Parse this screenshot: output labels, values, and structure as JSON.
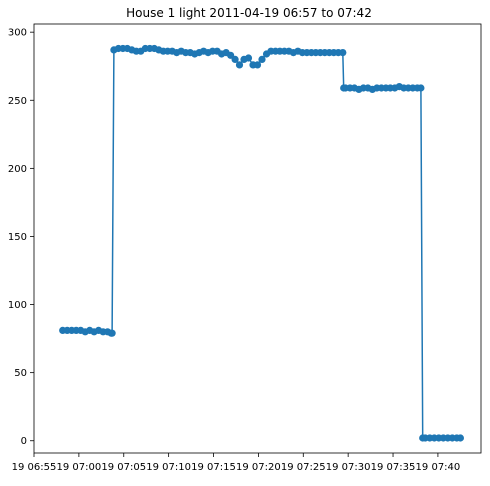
{
  "chart_data": {
    "type": "line",
    "title": "House 1 light 2011-04-19 06:57 to 07:42",
    "xlabel": "",
    "ylabel": "",
    "x_unit": "minute of hour 07 (negative = hour 06)",
    "xlim": [
      -5.0,
      44.8
    ],
    "ylim": [
      -9,
      306
    ],
    "x_ticks": [
      -5,
      0,
      5,
      10,
      15,
      20,
      25,
      30,
      35,
      40
    ],
    "x_tick_labels": [
      "19 06:55",
      "19 07:00",
      "19 07:05",
      "19 07:10",
      "19 07:15",
      "19 07:20",
      "19 07:25",
      "19 07:30",
      "19 07:35",
      "19 07:40"
    ],
    "y_ticks": [
      0,
      50,
      100,
      150,
      200,
      250,
      300
    ],
    "y_tick_labels": [
      "0",
      "50",
      "100",
      "150",
      "200",
      "250",
      "300"
    ],
    "grid": false,
    "legend": "none",
    "series": [
      {
        "color": "#1f77b4",
        "marker": "circle",
        "x": [
          -1.8,
          -1.3,
          -0.8,
          -0.3,
          0.2,
          0.7,
          1.2,
          1.7,
          2.2,
          2.7,
          3.2,
          3.6,
          3.7,
          3.9,
          4.4,
          4.9,
          5.4,
          5.9,
          6.4,
          6.9,
          7.4,
          7.9,
          8.4,
          8.9,
          9.4,
          9.9,
          10.4,
          10.9,
          11.4,
          11.9,
          12.4,
          12.9,
          13.4,
          13.9,
          14.4,
          14.9,
          15.4,
          15.9,
          16.4,
          16.9,
          17.4,
          17.9,
          18.4,
          18.9,
          19.4,
          19.9,
          20.4,
          20.9,
          21.4,
          21.9,
          22.4,
          22.9,
          23.4,
          23.9,
          24.4,
          24.9,
          25.4,
          25.9,
          26.4,
          26.9,
          27.4,
          27.9,
          28.4,
          28.9,
          29.4,
          29.5,
          29.7,
          30.2,
          30.7,
          31.2,
          31.7,
          32.2,
          32.7,
          33.2,
          33.7,
          34.2,
          34.7,
          35.2,
          35.7,
          36.2,
          36.7,
          37.2,
          37.7,
          38.1,
          38.3,
          38.6,
          39.1,
          39.6,
          40.1,
          40.6,
          41.1,
          41.6,
          42.1,
          42.5
        ],
        "y": [
          81,
          81,
          81,
          81,
          81,
          80,
          81,
          80,
          81,
          80,
          80,
          79,
          79,
          287,
          288,
          288,
          288,
          287,
          286,
          286,
          288,
          288,
          288,
          287,
          286,
          286,
          286,
          285,
          286,
          285,
          285,
          284,
          285,
          286,
          285,
          286,
          286,
          284,
          285,
          283,
          280,
          276,
          280,
          281,
          276,
          276,
          280,
          284,
          286,
          286,
          286,
          286,
          286,
          285,
          286,
          285,
          285,
          285,
          285,
          285,
          285,
          285,
          285,
          285,
          285,
          259,
          259,
          259,
          259,
          258,
          259,
          259,
          258,
          259,
          259,
          259,
          259,
          259,
          260,
          259,
          259,
          259,
          259,
          259,
          2,
          2,
          2,
          2,
          2,
          2,
          2,
          2,
          2,
          2
        ]
      }
    ]
  }
}
